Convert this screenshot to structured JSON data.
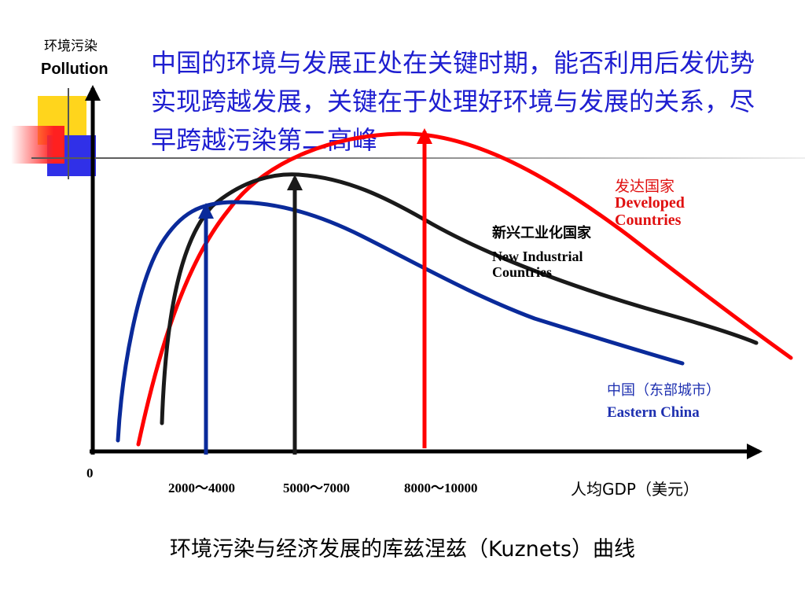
{
  "headline": "中国的环境与发展正处在关键时期，能否利用后发优势实现跨越发展，关键在于处理好环境与发展的关系，尽早跨越污染第二高峰",
  "caption": "环境污染与经济发展的库兹涅兹（Kuznets）曲线",
  "chart_data": {
    "type": "line",
    "title": "",
    "ylabel_cn": "环境污染",
    "ylabel_en": "Pollution",
    "xlabel": "人均GDP（美元）",
    "origin_label": "0",
    "x_tick_labels": [
      "2000～4000",
      "5000～7000",
      "8000～10000"
    ],
    "series": [
      {
        "name_cn": "发达国家",
        "name_en": "Developed Countries",
        "color": "#FF0000",
        "peak_x_label": "8000～10000",
        "shape": "inverted-U, highest peak, ends lowest on right"
      },
      {
        "name_cn": "新兴工业化国家",
        "name_en": "New Industrial Countries",
        "color": "#1A1A1A",
        "peak_x_label": "5000～7000",
        "shape": "inverted-U, middle peak"
      },
      {
        "name_cn": "中国（东部城市）",
        "name_en": "Eastern China",
        "color": "#0A2A9A",
        "peak_x_label": "2000～4000",
        "shape": "inverted-U, earliest and lowest peak"
      }
    ],
    "peak_markers": [
      {
        "x_label": "2000～4000",
        "color": "#0A2A9A"
      },
      {
        "x_label": "5000～7000",
        "color": "#1A1A1A"
      },
      {
        "x_label": "8000～10000",
        "color": "#FF0000"
      }
    ],
    "grid": false,
    "legend": "inline labels near curve ends"
  }
}
